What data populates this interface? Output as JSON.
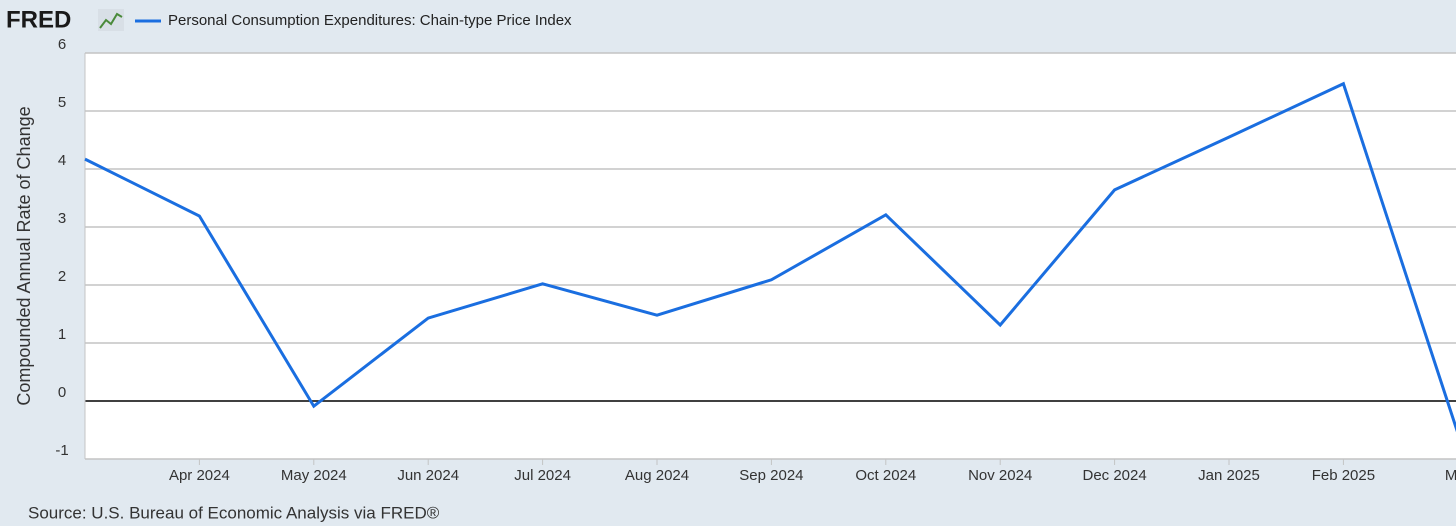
{
  "chart_data": {
    "type": "line",
    "logo": "FRED",
    "y_label": "Compounded Annual Rate of Change",
    "source": "Source: U.S. Bureau of Economic Analysis via FRED®",
    "categories": [
      null,
      "Apr 2024",
      "May 2024",
      "Jun 2024",
      "Jul 2024",
      "Aug 2024",
      "Sep 2024",
      "Oct 2024",
      "Nov 2024",
      "Dec 2024",
      "Jan 2025",
      "Feb 2025",
      "Mar"
    ],
    "series": [
      {
        "name": "Personal Consumption Expenditures: Chain-type Price Index",
        "color": "#1a6ee0",
        "values": [
          4.17,
          3.19,
          -0.09,
          1.43,
          2.02,
          1.48,
          2.09,
          3.21,
          1.31,
          3.64,
          4.55,
          5.47,
          -0.55
        ]
      }
    ],
    "ylim": [
      -1,
      6
    ],
    "yticks": [
      -1,
      0,
      1,
      2,
      3,
      4,
      5,
      6
    ],
    "grid": true
  }
}
